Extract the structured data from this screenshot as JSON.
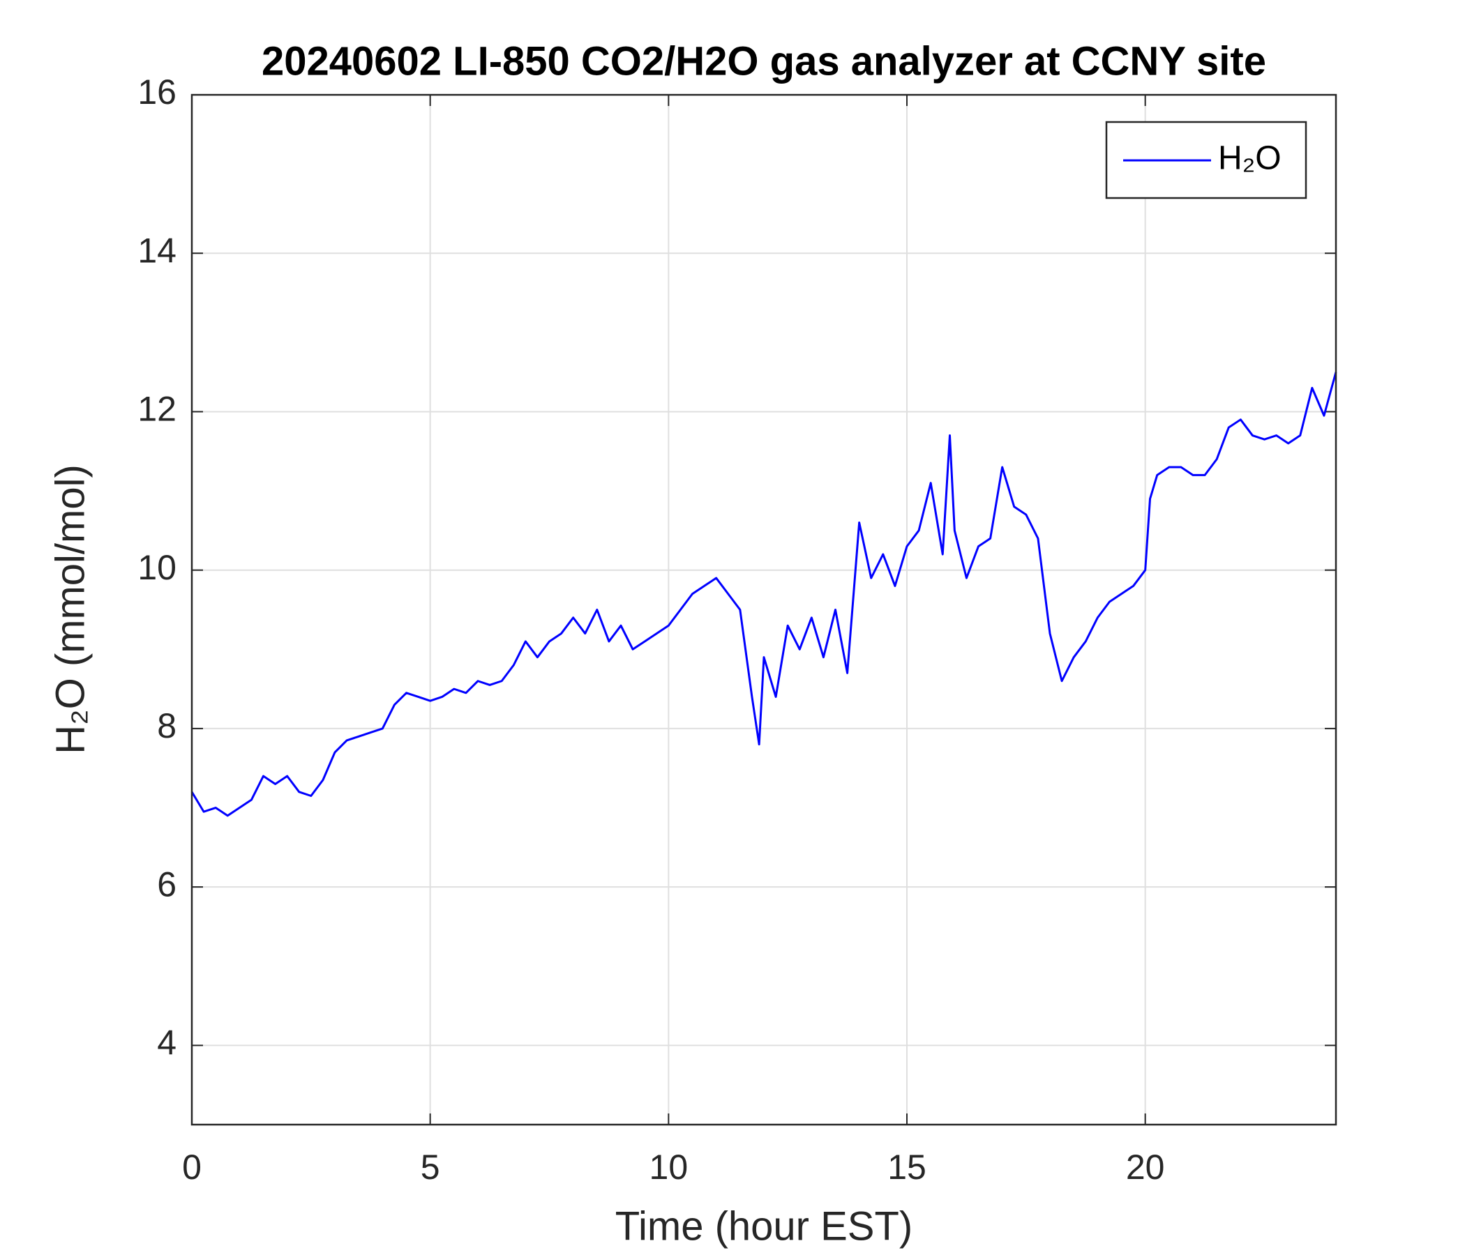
{
  "chart_data": {
    "type": "line",
    "title": "20240602 LI-850 CO2/H2O gas analyzer at CCNY site",
    "xlabel": "Time (hour EST)",
    "ylabel": "H₂O (mmol/mol)",
    "x": [
      0,
      0.25,
      0.5,
      0.75,
      1,
      1.25,
      1.5,
      1.75,
      2,
      2.25,
      2.5,
      2.75,
      3,
      3.25,
      3.5,
      3.75,
      4,
      4.25,
      4.5,
      4.75,
      5,
      5.25,
      5.5,
      5.75,
      6,
      6.25,
      6.5,
      6.75,
      7,
      7.25,
      7.5,
      7.75,
      8,
      8.25,
      8.5,
      8.75,
      9,
      9.25,
      9.5,
      9.75,
      10,
      10.25,
      10.5,
      10.75,
      11,
      11.25,
      11.5,
      11.75,
      11.9,
      12,
      12.25,
      12.5,
      12.75,
      13,
      13.25,
      13.5,
      13.75,
      14,
      14.25,
      14.5,
      14.75,
      15,
      15.25,
      15.5,
      15.75,
      15.9,
      16,
      16.25,
      16.5,
      16.75,
      17,
      17.25,
      17.5,
      17.75,
      18,
      18.25,
      18.5,
      18.75,
      19,
      19.25,
      19.5,
      19.75,
      20,
      20.1,
      20.25,
      20.5,
      20.75,
      21,
      21.25,
      21.5,
      21.75,
      22,
      22.25,
      22.5,
      22.75,
      23,
      23.25,
      23.5,
      23.75,
      24
    ],
    "series": [
      {
        "name": "H₂O",
        "color": "#0000ff",
        "values": [
          7.2,
          6.95,
          7.0,
          6.9,
          7.0,
          7.1,
          7.4,
          7.3,
          7.4,
          7.2,
          7.15,
          7.35,
          7.7,
          7.85,
          7.9,
          7.95,
          8.0,
          8.3,
          8.45,
          8.4,
          8.35,
          8.4,
          8.5,
          8.45,
          8.6,
          8.55,
          8.6,
          8.8,
          9.1,
          8.9,
          9.1,
          9.2,
          9.4,
          9.2,
          9.5,
          9.1,
          9.3,
          9.0,
          9.1,
          9.2,
          9.3,
          9.5,
          9.7,
          9.8,
          9.9,
          9.7,
          9.5,
          8.4,
          7.8,
          8.9,
          8.4,
          9.3,
          9.0,
          9.4,
          8.9,
          9.5,
          8.7,
          10.6,
          9.9,
          10.2,
          9.8,
          10.3,
          10.5,
          11.1,
          10.2,
          11.7,
          10.5,
          9.9,
          10.3,
          10.4,
          11.3,
          10.8,
          10.7,
          10.4,
          9.2,
          8.6,
          8.9,
          9.1,
          9.4,
          9.6,
          9.7,
          9.8,
          10.0,
          10.9,
          11.2,
          11.3,
          11.3,
          11.2,
          11.2,
          11.4,
          11.8,
          11.9,
          11.7,
          11.65,
          11.7,
          11.6,
          11.7,
          12.3,
          11.95,
          12.5
        ]
      }
    ],
    "xlim": [
      0,
      24
    ],
    "xticks": [
      0,
      5,
      10,
      15,
      20
    ],
    "ylim": [
      3,
      16
    ],
    "yticks": [
      4,
      6,
      8,
      10,
      12,
      14,
      16
    ],
    "grid": true,
    "legend": "top-right"
  }
}
